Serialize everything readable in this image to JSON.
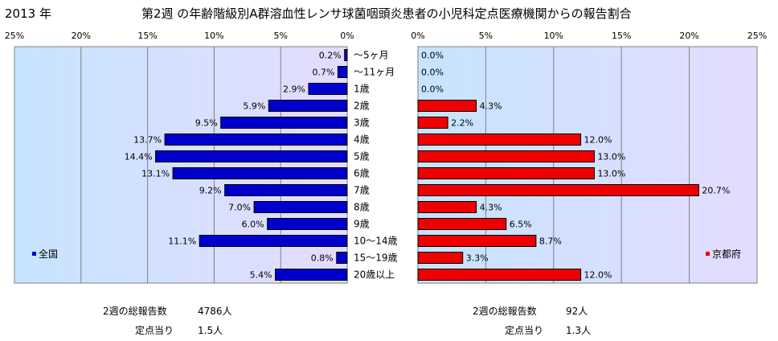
{
  "header": {
    "year": "2013 年",
    "title": "第2週 の年齢階級別A群溶血性レンサ球菌咽頭炎患者の小児科定点医療機関からの報告割合"
  },
  "chart_data": [
    {
      "type": "bar",
      "orientation": "horizontal",
      "direction": "right-to-left",
      "categories": [
        "～5ヶ月",
        "～11ヶ月",
        "1歳",
        "2歳",
        "3歳",
        "4歳",
        "5歳",
        "6歳",
        "7歳",
        "8歳",
        "9歳",
        "10～14歳",
        "15～19歳",
        "20歳以上"
      ],
      "series": [
        {
          "name": "全国",
          "values": [
            0.2,
            0.7,
            2.9,
            5.9,
            9.5,
            13.7,
            14.4,
            13.1,
            9.2,
            7.0,
            6.0,
            11.1,
            0.8,
            5.4
          ],
          "labels": [
            "0.2%",
            "0.7%",
            "2.9%",
            "5.9%",
            "9.5%",
            "13.7%",
            "14.4%",
            "13.1%",
            "9.2%",
            "7.0%",
            "6.0%",
            "11.1%",
            "0.8%",
            "5.4%"
          ],
          "color": "#0000CC"
        }
      ],
      "xlim": [
        0,
        25
      ],
      "xticks": [
        "25%",
        "20%",
        "15%",
        "10%",
        "5%",
        "0%"
      ],
      "grid": true,
      "legend": "bottom-left"
    },
    {
      "type": "bar",
      "orientation": "horizontal",
      "direction": "left-to-right",
      "categories": [
        "～5ヶ月",
        "～11ヶ月",
        "1歳",
        "2歳",
        "3歳",
        "4歳",
        "5歳",
        "6歳",
        "7歳",
        "8歳",
        "9歳",
        "10～14歳",
        "15～19歳",
        "20歳以上"
      ],
      "series": [
        {
          "name": "京都府",
          "values": [
            0.0,
            0.0,
            0.0,
            4.3,
            2.2,
            12.0,
            13.0,
            13.0,
            20.7,
            4.3,
            6.5,
            8.7,
            3.3,
            12.0
          ],
          "labels": [
            "0.0%",
            "0.0%",
            "0.0%",
            "4.3%",
            "2.2%",
            "12.0%",
            "13.0%",
            "13.0%",
            "20.7%",
            "4.3%",
            "6.5%",
            "8.7%",
            "3.3%",
            "12.0%"
          ],
          "color": "#EE0000"
        }
      ],
      "xlim": [
        0,
        25
      ],
      "xticks": [
        "0%",
        "5%",
        "10%",
        "15%",
        "20%",
        "25%"
      ],
      "grid": true,
      "legend": "bottom-right"
    }
  ],
  "footer": {
    "left": {
      "total_label": "2週の総報告数",
      "total_value": "4786人",
      "per_label": "定点当り",
      "per_value": "1.5人"
    },
    "right": {
      "total_label": "2週の総報告数",
      "total_value": "92人",
      "per_label": "定点当り",
      "per_value": "1.3人"
    }
  }
}
